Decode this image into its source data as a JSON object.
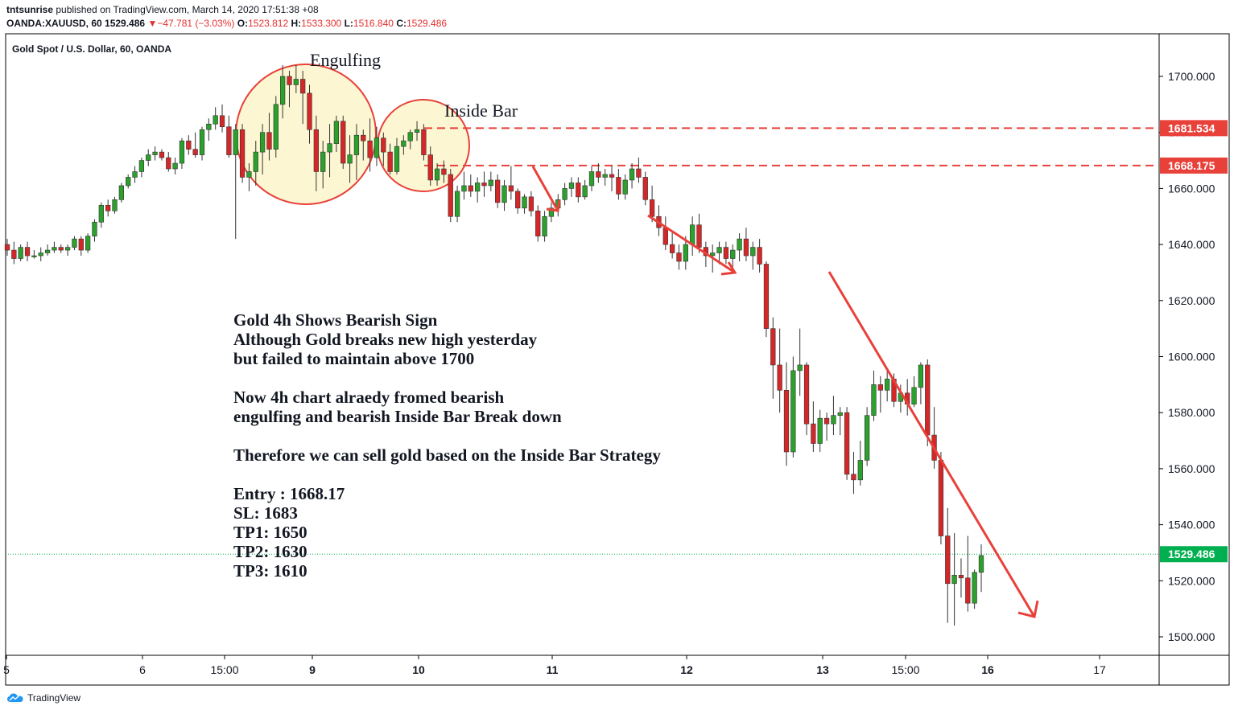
{
  "publish": {
    "user": "tntsunrise",
    "text": "published on TradingView.com, March 14, 2020 17:51:38 +08"
  },
  "symbol_line": {
    "symbol": "OANDA:XAUUSD, 60",
    "price": "1529.486",
    "change": "−47.781 (−3.03%)",
    "o_label": "O:",
    "o": "1523.812",
    "h_label": "H:",
    "h": "1533.300",
    "l_label": "L:",
    "l": "1516.840",
    "c_label": "C:",
    "c": "1529.486"
  },
  "colors": {
    "up": "#2ca02c",
    "down": "#d62728",
    "annotation": "#e8413a",
    "circle_fill": "#fcf7d2",
    "last_price": "#00b050"
  },
  "icons": {
    "brand": "tradingview-cloud-icon"
  },
  "brand": "TradingView",
  "chart_data": {
    "type": "candlestick",
    "title": "Gold Spot / U.S. Dollar, 60, OANDA",
    "ylim": [
      1490,
      1718
    ],
    "y_ticks": [
      "1500.000",
      "1520.000",
      "1540.000",
      "1560.000",
      "1580.000",
      "1600.000",
      "1620.000",
      "1640.000",
      "1660.000",
      "1680.000",
      "1700.000"
    ],
    "x_ticks": [
      "5",
      "6",
      "15:00",
      "9",
      "10",
      "11",
      "12",
      "13",
      "15:00",
      "16",
      "17"
    ],
    "x_ticks_bold": [
      "9",
      "10",
      "11",
      "12",
      "13",
      "16"
    ],
    "price_labels": [
      {
        "value": 1681.534,
        "text": "1681.534",
        "style": "dashed-red"
      },
      {
        "value": 1668.175,
        "text": "1668.175",
        "style": "dashed-red"
      },
      {
        "value": 1529.486,
        "text": "1529.486",
        "style": "dotted-green"
      }
    ],
    "labels": {
      "engulfing": "Engulfing",
      "inside_bar": "Inside Bar"
    },
    "annotation_lines": [
      "Gold 4h Shows Bearish Sign",
      "Although Gold breaks new high yesterday",
      "but failed to maintain above 1700",
      "",
      "Now 4h chart alraedy fromed bearish",
      "engulfing and bearish Inside Bar Break down",
      "",
      "Therefore we can sell gold based on the Inside Bar Strategy",
      "",
      "Entry : 1668.17",
      "SL: 1683",
      "TP1: 1650",
      "TP2: 1630",
      "TP3: 1610"
    ],
    "candles": [
      [
        1640,
        1642,
        1636,
        1638
      ],
      [
        1638,
        1641,
        1633,
        1635
      ],
      [
        1635,
        1640,
        1634,
        1639
      ],
      [
        1639,
        1641,
        1634,
        1636
      ],
      [
        1636,
        1638,
        1635,
        1636
      ],
      [
        1636,
        1639,
        1634,
        1637
      ],
      [
        1637,
        1640,
        1636,
        1638
      ],
      [
        1638,
        1641,
        1637,
        1639
      ],
      [
        1639,
        1640,
        1637,
        1638
      ],
      [
        1638,
        1640,
        1636,
        1639
      ],
      [
        1639,
        1643,
        1638,
        1642
      ],
      [
        1642,
        1643,
        1636,
        1638
      ],
      [
        1638,
        1644,
        1637,
        1643
      ],
      [
        1643,
        1649,
        1641,
        1648
      ],
      [
        1648,
        1655,
        1646,
        1654
      ],
      [
        1654,
        1656,
        1650,
        1652
      ],
      [
        1652,
        1657,
        1651,
        1656
      ],
      [
        1656,
        1662,
        1655,
        1661
      ],
      [
        1661,
        1665,
        1660,
        1664
      ],
      [
        1664,
        1668,
        1662,
        1666
      ],
      [
        1666,
        1671,
        1664,
        1670
      ],
      [
        1670,
        1674,
        1668,
        1672
      ],
      [
        1672,
        1675,
        1670,
        1673
      ],
      [
        1673,
        1674,
        1670,
        1671
      ],
      [
        1671,
        1673,
        1666,
        1667
      ],
      [
        1667,
        1671,
        1665,
        1669
      ],
      [
        1669,
        1678,
        1667,
        1677
      ],
      [
        1677,
        1679,
        1672,
        1674
      ],
      [
        1674,
        1680,
        1671,
        1672
      ],
      [
        1672,
        1682,
        1670,
        1681
      ],
      [
        1681,
        1685,
        1677,
        1683
      ],
      [
        1683,
        1689,
        1681,
        1686
      ],
      [
        1686,
        1690,
        1680,
        1682
      ],
      [
        1682,
        1686,
        1671,
        1672
      ],
      [
        1672,
        1683,
        1642,
        1681
      ],
      [
        1681,
        1683,
        1662,
        1664
      ],
      [
        1664,
        1669,
        1659,
        1666
      ],
      [
        1666,
        1677,
        1661,
        1673
      ],
      [
        1673,
        1683,
        1665,
        1680
      ],
      [
        1680,
        1687,
        1670,
        1674
      ],
      [
        1674,
        1693,
        1671,
        1690
      ],
      [
        1690,
        1704,
        1685,
        1700
      ],
      [
        1700,
        1702,
        1689,
        1697
      ],
      [
        1697,
        1704,
        1694,
        1699
      ],
      [
        1699,
        1702,
        1683,
        1694
      ],
      [
        1694,
        1697,
        1676,
        1681
      ],
      [
        1681,
        1686,
        1659,
        1666
      ],
      [
        1666,
        1677,
        1660,
        1673
      ],
      [
        1673,
        1683,
        1664,
        1676
      ],
      [
        1676,
        1686,
        1673,
        1684
      ],
      [
        1684,
        1686,
        1667,
        1669
      ],
      [
        1669,
        1679,
        1662,
        1672
      ],
      [
        1672,
        1683,
        1663,
        1679
      ],
      [
        1679,
        1681,
        1670,
        1677
      ],
      [
        1677,
        1685,
        1666,
        1671
      ],
      [
        1671,
        1682,
        1668,
        1678
      ],
      [
        1678,
        1680,
        1668,
        1673
      ],
      [
        1673,
        1676,
        1665,
        1666
      ],
      [
        1666,
        1678,
        1665,
        1675
      ],
      [
        1675,
        1679,
        1672,
        1677
      ],
      [
        1677,
        1681,
        1674,
        1680
      ],
      [
        1680,
        1684,
        1677,
        1681
      ],
      [
        1681,
        1683,
        1670,
        1672
      ],
      [
        1672,
        1675,
        1661,
        1663
      ],
      [
        1663,
        1669,
        1661,
        1667
      ],
      [
        1667,
        1670,
        1662,
        1665
      ],
      [
        1665,
        1667,
        1648,
        1650
      ],
      [
        1650,
        1661,
        1648,
        1659
      ],
      [
        1659,
        1666,
        1656,
        1661
      ],
      [
        1661,
        1665,
        1657,
        1659
      ],
      [
        1659,
        1664,
        1655,
        1662
      ],
      [
        1662,
        1666,
        1657,
        1661
      ],
      [
        1661,
        1666,
        1659,
        1663
      ],
      [
        1663,
        1665,
        1653,
        1655
      ],
      [
        1655,
        1663,
        1652,
        1661
      ],
      [
        1661,
        1668,
        1656,
        1659
      ],
      [
        1659,
        1660,
        1651,
        1653
      ],
      [
        1653,
        1658,
        1651,
        1657
      ],
      [
        1657,
        1659,
        1650,
        1652
      ],
      [
        1652,
        1654,
        1641,
        1643
      ],
      [
        1643,
        1652,
        1641,
        1650
      ],
      [
        1650,
        1655,
        1648,
        1653
      ],
      [
        1653,
        1658,
        1650,
        1656
      ],
      [
        1656,
        1662,
        1654,
        1660
      ],
      [
        1660,
        1664,
        1657,
        1662
      ],
      [
        1662,
        1664,
        1655,
        1657
      ],
      [
        1657,
        1663,
        1656,
        1661
      ],
      [
        1661,
        1668,
        1659,
        1666
      ],
      [
        1666,
        1669,
        1662,
        1664
      ],
      [
        1664,
        1667,
        1661,
        1665
      ],
      [
        1665,
        1668,
        1659,
        1664
      ],
      [
        1664,
        1667,
        1656,
        1658
      ],
      [
        1658,
        1665,
        1656,
        1663
      ],
      [
        1663,
        1669,
        1660,
        1667
      ],
      [
        1667,
        1671,
        1662,
        1664
      ],
      [
        1664,
        1666,
        1654,
        1656
      ],
      [
        1656,
        1661,
        1648,
        1650
      ],
      [
        1650,
        1654,
        1643,
        1646
      ],
      [
        1646,
        1650,
        1638,
        1640
      ],
      [
        1640,
        1645,
        1635,
        1637
      ],
      [
        1637,
        1640,
        1631,
        1634
      ],
      [
        1634,
        1643,
        1631,
        1640
      ],
      [
        1640,
        1650,
        1636,
        1647
      ],
      [
        1647,
        1651,
        1637,
        1639
      ],
      [
        1639,
        1641,
        1632,
        1636
      ],
      [
        1636,
        1640,
        1630,
        1637
      ],
      [
        1637,
        1641,
        1633,
        1639
      ],
      [
        1639,
        1641,
        1633,
        1635
      ],
      [
        1635,
        1640,
        1632,
        1638
      ],
      [
        1638,
        1644,
        1634,
        1642
      ],
      [
        1642,
        1646,
        1634,
        1636
      ],
      [
        1636,
        1641,
        1631,
        1639
      ],
      [
        1639,
        1642,
        1630,
        1633
      ],
      [
        1633,
        1634,
        1607,
        1610
      ],
      [
        1610,
        1614,
        1585,
        1597
      ],
      [
        1597,
        1610,
        1580,
        1588
      ],
      [
        1588,
        1598,
        1561,
        1566
      ],
      [
        1566,
        1600,
        1564,
        1595
      ],
      [
        1595,
        1610,
        1586,
        1597
      ],
      [
        1597,
        1598,
        1572,
        1576
      ],
      [
        1576,
        1584,
        1566,
        1569
      ],
      [
        1569,
        1581,
        1566,
        1578
      ],
      [
        1578,
        1580,
        1570,
        1576
      ],
      [
        1576,
        1586,
        1572,
        1579
      ],
      [
        1579,
        1582,
        1572,
        1580
      ],
      [
        1580,
        1582,
        1556,
        1558
      ],
      [
        1558,
        1566,
        1551,
        1556
      ],
      [
        1556,
        1570,
        1554,
        1563
      ],
      [
        1563,
        1582,
        1561,
        1579
      ],
      [
        1579,
        1595,
        1577,
        1590
      ],
      [
        1590,
        1593,
        1580,
        1588
      ],
      [
        1588,
        1595,
        1584,
        1592
      ],
      [
        1592,
        1594,
        1582,
        1584
      ],
      [
        1584,
        1590,
        1580,
        1587
      ],
      [
        1587,
        1592,
        1579,
        1583
      ],
      [
        1583,
        1593,
        1582,
        1589
      ],
      [
        1589,
        1598,
        1583,
        1597
      ],
      [
        1597,
        1599,
        1568,
        1572
      ],
      [
        1572,
        1582,
        1560,
        1563
      ],
      [
        1563,
        1566,
        1533,
        1536
      ],
      [
        1536,
        1546,
        1505,
        1519
      ],
      [
        1519,
        1537,
        1504,
        1522
      ],
      [
        1522,
        1528,
        1514,
        1521
      ],
      [
        1521,
        1536,
        1509,
        1512
      ],
      [
        1512,
        1524,
        1510,
        1523
      ],
      [
        1523,
        1533,
        1516,
        1529
      ]
    ]
  }
}
